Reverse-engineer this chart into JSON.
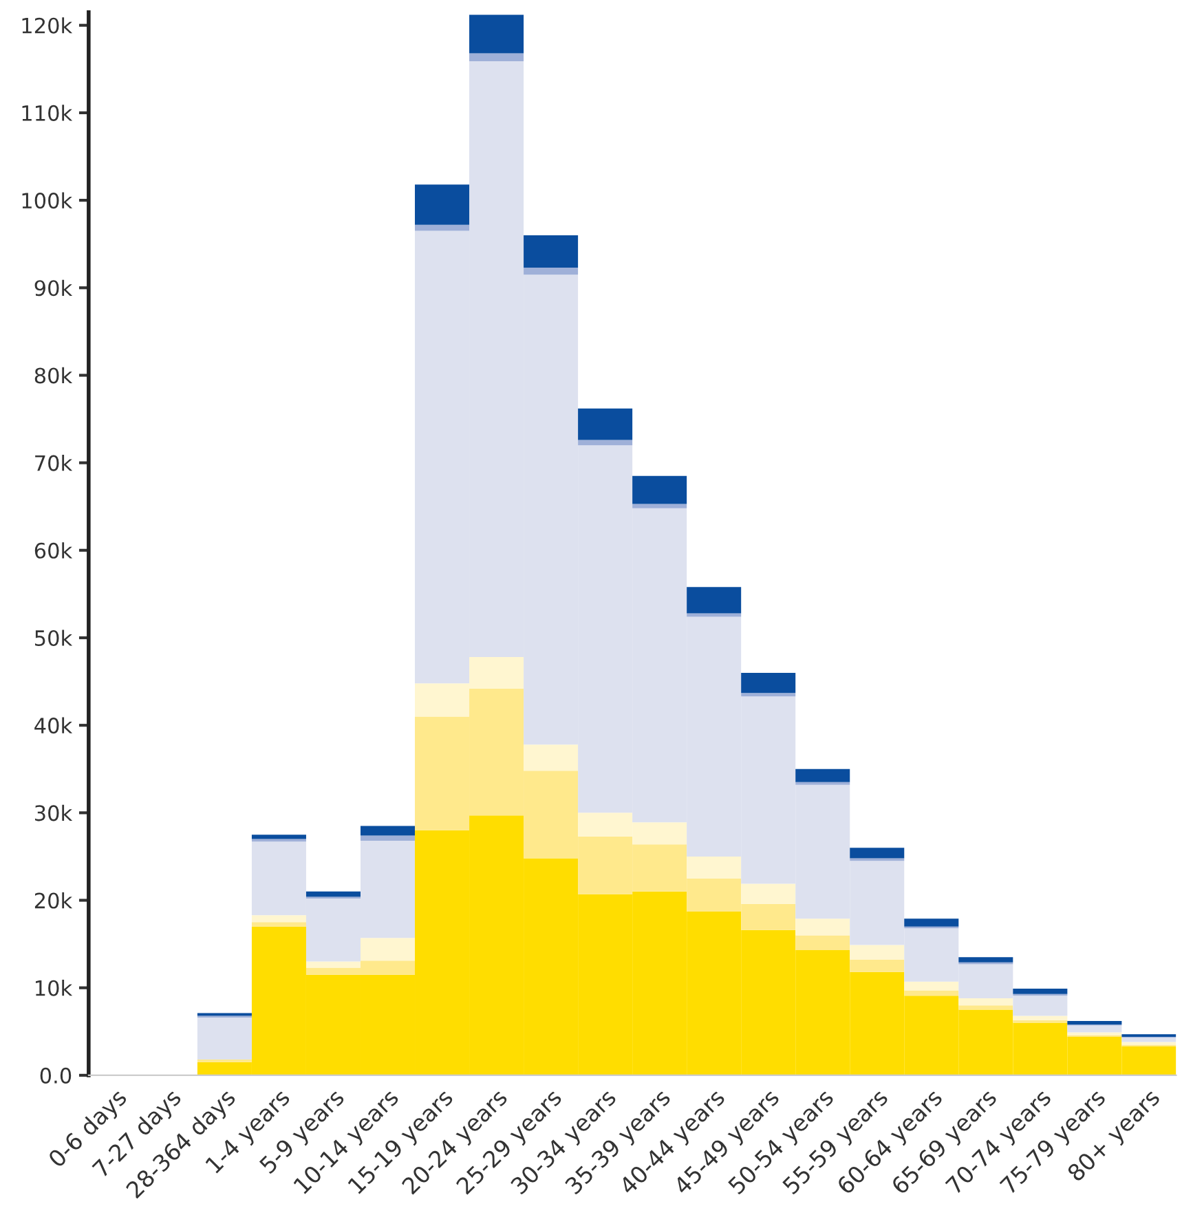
{
  "chart_data": {
    "type": "bar",
    "stacked": true,
    "categories": [
      "0-6 days",
      "7-27 days",
      "28-364 days",
      "1-4 years",
      "5-9 years",
      "10-14 years",
      "15-19 years",
      "20-24 years",
      "25-29 years",
      "30-34 years",
      "35-39 years",
      "40-44 years",
      "45-49 years",
      "50-54 years",
      "55-59 years",
      "60-64 years",
      "65-69 years",
      "70-74 years",
      "75-79 years",
      "80+ years"
    ],
    "series": [
      {
        "color": "#ffdd00",
        "values": [
          0,
          0,
          1500,
          17000,
          11500,
          11500,
          28000,
          29700,
          24800,
          20700,
          21000,
          18700,
          16600,
          14300,
          11800,
          9100,
          7500,
          6000,
          4400,
          3300
        ]
      },
      {
        "color": "#ffe98c",
        "values": [
          0,
          0,
          300,
          500,
          800,
          1600,
          13000,
          14500,
          10000,
          6600,
          5400,
          3800,
          3000,
          1700,
          1400,
          600,
          500,
          300,
          200,
          200
        ]
      },
      {
        "color": "#fff6d0",
        "values": [
          0,
          0,
          null,
          800,
          700,
          2600,
          3800,
          3600,
          3000,
          2700,
          2500,
          2500,
          2300,
          1900,
          1700,
          1000,
          800,
          500,
          300,
          300
        ]
      },
      {
        "color": "#dde1ef",
        "values": [
          0,
          0,
          4800,
          8400,
          7200,
          11100,
          51700,
          68100,
          53700,
          42000,
          35900,
          27400,
          21400,
          15300,
          9600,
          6100,
          3900,
          2300,
          800,
          500
        ]
      },
      {
        "color": "#9fb0d8",
        "values": [
          0,
          0,
          200,
          300,
          200,
          600,
          700,
          900,
          800,
          600,
          500,
          400,
          400,
          300,
          300,
          200,
          200,
          200,
          100,
          100
        ]
      },
      {
        "color": "#0a4d9e",
        "values": [
          0,
          0,
          300,
          500,
          600,
          1100,
          4600,
          4400,
          3700,
          3600,
          3200,
          3000,
          2300,
          1500,
          1200,
          900,
          600,
          600,
          400,
          300
        ]
      }
    ],
    "ylim": [
      0,
      121500
    ],
    "grid": false,
    "yticks": [
      {
        "value": 0,
        "label": "0.0"
      },
      {
        "value": 10000,
        "label": "10k"
      },
      {
        "value": 20000,
        "label": "20k"
      },
      {
        "value": 30000,
        "label": "30k"
      },
      {
        "value": 40000,
        "label": "40k"
      },
      {
        "value": 50000,
        "label": "50k"
      },
      {
        "value": 60000,
        "label": "60k"
      },
      {
        "value": 70000,
        "label": "70k"
      },
      {
        "value": 80000,
        "label": "80k"
      },
      {
        "value": 90000,
        "label": "90k"
      },
      {
        "value": 100000,
        "label": "100k"
      },
      {
        "value": 110000,
        "label": "110k"
      },
      {
        "value": 120000,
        "label": "120k"
      }
    ],
    "orientation": "vertical"
  }
}
